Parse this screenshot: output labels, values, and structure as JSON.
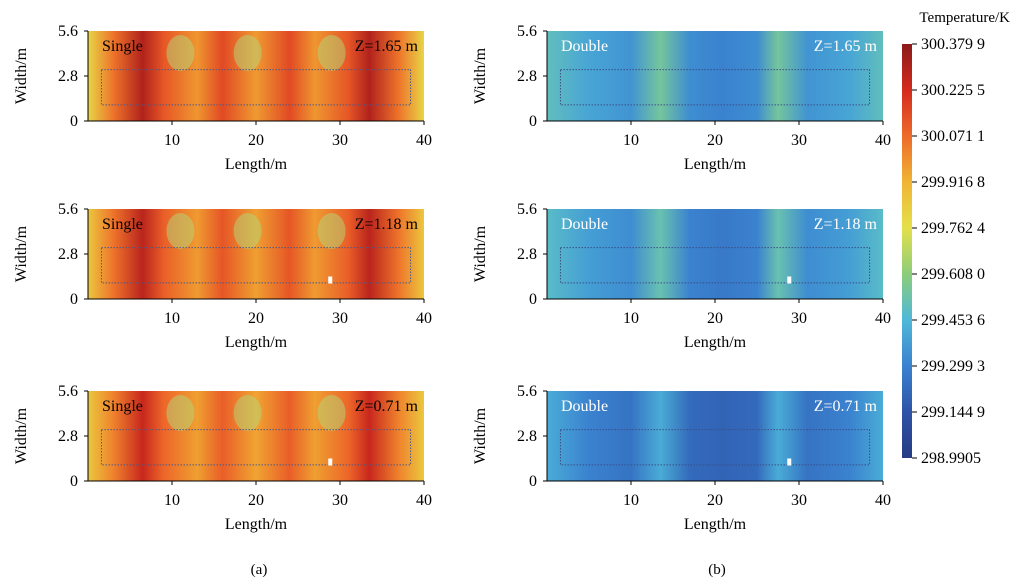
{
  "chart_data": [
    {
      "type": "heatmap",
      "panel": "a",
      "label": "Single",
      "z_label": "Z=1.65 m",
      "xlabel": "Length/m",
      "ylabel": "Width/m",
      "x_ticks": [
        "10",
        "20",
        "30",
        "40"
      ],
      "y_ticks": [
        "0",
        "2.8",
        "5.6"
      ],
      "xlim": [
        0,
        40
      ],
      "ylim": [
        0,
        5.6
      ],
      "temperature_bands_K": [
        {
          "x": 0,
          "value": 299.8
        },
        {
          "x": 3,
          "value": 300.05
        },
        {
          "x": 6.5,
          "value": 300.3
        },
        {
          "x": 9,
          "value": 300.12
        },
        {
          "x": 13,
          "value": 299.98
        },
        {
          "x": 16,
          "value": 300.15
        },
        {
          "x": 20,
          "value": 299.97
        },
        {
          "x": 24,
          "value": 300.15
        },
        {
          "x": 27,
          "value": 299.98
        },
        {
          "x": 31,
          "value": 300.12
        },
        {
          "x": 33.5,
          "value": 300.3
        },
        {
          "x": 37,
          "value": 300.05
        },
        {
          "x": 40,
          "value": 299.8
        }
      ],
      "cool_spots_x": [
        11,
        19,
        29
      ]
    },
    {
      "type": "heatmap",
      "panel": "a",
      "label": "Single",
      "z_label": "Z=1.18 m",
      "xlabel": "Length/m",
      "ylabel": "Width/m",
      "x_ticks": [
        "10",
        "20",
        "30",
        "40"
      ],
      "y_ticks": [
        "0",
        "2.8",
        "5.6"
      ],
      "xlim": [
        0,
        40
      ],
      "ylim": [
        0,
        5.6
      ],
      "temperature_bands_K": [
        {
          "x": 0,
          "value": 299.85
        },
        {
          "x": 3,
          "value": 300.05
        },
        {
          "x": 6.5,
          "value": 300.28
        },
        {
          "x": 9,
          "value": 300.1
        },
        {
          "x": 13,
          "value": 299.97
        },
        {
          "x": 16,
          "value": 300.12
        },
        {
          "x": 20,
          "value": 299.96
        },
        {
          "x": 24,
          "value": 300.12
        },
        {
          "x": 27,
          "value": 299.97
        },
        {
          "x": 31,
          "value": 300.1
        },
        {
          "x": 33.5,
          "value": 300.28
        },
        {
          "x": 37,
          "value": 300.05
        },
        {
          "x": 40,
          "value": 299.85
        }
      ],
      "cool_spots_x": [
        11,
        19,
        29
      ]
    },
    {
      "type": "heatmap",
      "panel": "a",
      "label": "Single",
      "z_label": "Z=0.71 m",
      "xlabel": "Length/m",
      "ylabel": "Width/m",
      "x_ticks": [
        "10",
        "20",
        "30",
        "40"
      ],
      "y_ticks": [
        "0",
        "2.8",
        "5.6"
      ],
      "xlim": [
        0,
        40
      ],
      "ylim": [
        0,
        5.6
      ],
      "temperature_bands_K": [
        {
          "x": 0,
          "value": 299.85
        },
        {
          "x": 3,
          "value": 300.02
        },
        {
          "x": 6.5,
          "value": 300.25
        },
        {
          "x": 9,
          "value": 300.08
        },
        {
          "x": 13,
          "value": 299.96
        },
        {
          "x": 16,
          "value": 300.1
        },
        {
          "x": 20,
          "value": 299.95
        },
        {
          "x": 24,
          "value": 300.1
        },
        {
          "x": 27,
          "value": 299.96
        },
        {
          "x": 31,
          "value": 300.08
        },
        {
          "x": 33.5,
          "value": 300.25
        },
        {
          "x": 37,
          "value": 300.02
        },
        {
          "x": 40,
          "value": 299.85
        }
      ],
      "cool_spots_x": [
        11,
        19,
        29
      ]
    },
    {
      "type": "heatmap",
      "panel": "b",
      "label": "Double",
      "z_label": "Z=1.65 m",
      "xlabel": "Length/m",
      "ylabel": "Width/m",
      "x_ticks": [
        "10",
        "20",
        "30",
        "40"
      ],
      "y_ticks": [
        "0",
        "2.8",
        "5.6"
      ],
      "xlim": [
        0,
        40
      ],
      "ylim": [
        0,
        5.6
      ],
      "temperature_bands_K": [
        {
          "x": 0,
          "value": 299.5
        },
        {
          "x": 5,
          "value": 299.4
        },
        {
          "x": 10,
          "value": 299.35
        },
        {
          "x": 13.5,
          "value": 299.55
        },
        {
          "x": 17,
          "value": 299.33
        },
        {
          "x": 21,
          "value": 299.3
        },
        {
          "x": 25,
          "value": 299.33
        },
        {
          "x": 27.5,
          "value": 299.55
        },
        {
          "x": 31,
          "value": 299.35
        },
        {
          "x": 36,
          "value": 299.4
        },
        {
          "x": 40,
          "value": 299.5
        }
      ],
      "cool_spots_x": []
    },
    {
      "type": "heatmap",
      "panel": "b",
      "label": "Double",
      "z_label": "Z=1.18 m",
      "xlabel": "Length/m",
      "ylabel": "Width/m",
      "x_ticks": [
        "10",
        "20",
        "30",
        "40"
      ],
      "y_ticks": [
        "0",
        "2.8",
        "5.6"
      ],
      "xlim": [
        0,
        40
      ],
      "ylim": [
        0,
        5.6
      ],
      "temperature_bands_K": [
        {
          "x": 0,
          "value": 299.48
        },
        {
          "x": 5,
          "value": 299.38
        },
        {
          "x": 10,
          "value": 299.33
        },
        {
          "x": 13.5,
          "value": 299.52
        },
        {
          "x": 17,
          "value": 299.3
        },
        {
          "x": 21,
          "value": 299.27
        },
        {
          "x": 25,
          "value": 299.3
        },
        {
          "x": 27.5,
          "value": 299.52
        },
        {
          "x": 31,
          "value": 299.33
        },
        {
          "x": 36,
          "value": 299.38
        },
        {
          "x": 40,
          "value": 299.48
        }
      ],
      "cool_spots_x": []
    },
    {
      "type": "heatmap",
      "panel": "b",
      "label": "Double",
      "z_label": "Z=0.71 m",
      "xlabel": "Length/m",
      "ylabel": "Width/m",
      "x_ticks": [
        "10",
        "20",
        "30",
        "40"
      ],
      "y_ticks": [
        "0",
        "2.8",
        "5.6"
      ],
      "xlim": [
        0,
        40
      ],
      "ylim": [
        0,
        5.6
      ],
      "temperature_bands_K": [
        {
          "x": 0,
          "value": 299.42
        },
        {
          "x": 5,
          "value": 299.3
        },
        {
          "x": 10,
          "value": 299.25
        },
        {
          "x": 13.5,
          "value": 299.42
        },
        {
          "x": 17,
          "value": 299.22
        },
        {
          "x": 21,
          "value": 299.2
        },
        {
          "x": 25,
          "value": 299.22
        },
        {
          "x": 27.5,
          "value": 299.42
        },
        {
          "x": 31,
          "value": 299.25
        },
        {
          "x": 36,
          "value": 299.3
        },
        {
          "x": 40,
          "value": 299.42
        }
      ],
      "cool_spots_x": []
    }
  ],
  "colorbar": {
    "title": "Temperature/K",
    "min": 298.9905,
    "max": 300.3799,
    "tick_labels": [
      "300.379 9",
      "300.225 5",
      "300.071 1",
      "299.916 8",
      "299.762 4",
      "299.608 0",
      "299.453 6",
      "299.299 3",
      "299.144 9",
      "298.9905"
    ],
    "tick_values": [
      300.3799,
      300.2255,
      300.0711,
      299.9168,
      299.7624,
      299.608,
      299.4536,
      299.2993,
      299.1449,
      298.9905
    ],
    "color_stops": [
      "#8b1a1a",
      "#d42a1e",
      "#ee6a2a",
      "#f0b434",
      "#e4e04a",
      "#8ccd7a",
      "#4fb8d8",
      "#3a82cf",
      "#2e53a8",
      "#263b83"
    ]
  },
  "panel_labels": [
    "(a)",
    "(b)"
  ]
}
